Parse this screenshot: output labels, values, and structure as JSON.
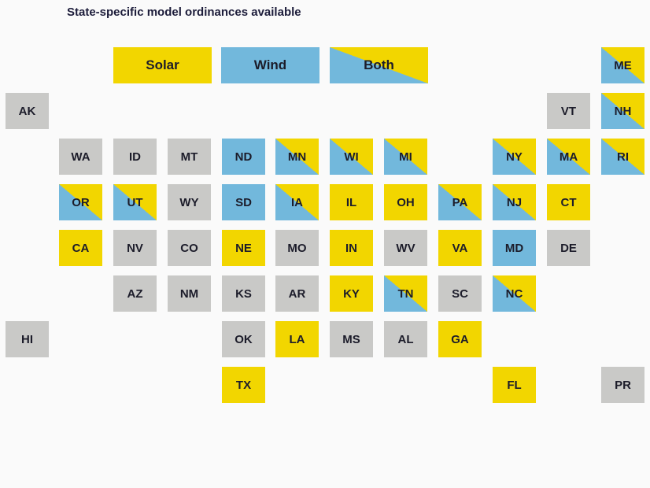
{
  "title": "State-specific model ordinances available",
  "legend": {
    "solar": "Solar",
    "wind": "Wind",
    "both": "Both"
  },
  "colors": {
    "solar": "#f2d600",
    "wind": "#72b8dc",
    "none": "#c9c9c7"
  },
  "states": [
    {
      "code": "ME",
      "status": "both"
    },
    {
      "code": "AK",
      "status": "none"
    },
    {
      "code": "VT",
      "status": "none"
    },
    {
      "code": "NH",
      "status": "both"
    },
    {
      "code": "WA",
      "status": "none"
    },
    {
      "code": "ID",
      "status": "none"
    },
    {
      "code": "MT",
      "status": "none"
    },
    {
      "code": "ND",
      "status": "wind"
    },
    {
      "code": "MN",
      "status": "both"
    },
    {
      "code": "WI",
      "status": "both"
    },
    {
      "code": "MI",
      "status": "both"
    },
    {
      "code": "NY",
      "status": "both"
    },
    {
      "code": "MA",
      "status": "both"
    },
    {
      "code": "RI",
      "status": "both"
    },
    {
      "code": "OR",
      "status": "both"
    },
    {
      "code": "UT",
      "status": "both"
    },
    {
      "code": "WY",
      "status": "none"
    },
    {
      "code": "SD",
      "status": "wind"
    },
    {
      "code": "IA",
      "status": "both"
    },
    {
      "code": "IL",
      "status": "solar"
    },
    {
      "code": "OH",
      "status": "solar"
    },
    {
      "code": "PA",
      "status": "both"
    },
    {
      "code": "NJ",
      "status": "both"
    },
    {
      "code": "CT",
      "status": "solar"
    },
    {
      "code": "CA",
      "status": "solar"
    },
    {
      "code": "NV",
      "status": "none"
    },
    {
      "code": "CO",
      "status": "none"
    },
    {
      "code": "NE",
      "status": "solar"
    },
    {
      "code": "MO",
      "status": "none"
    },
    {
      "code": "IN",
      "status": "solar"
    },
    {
      "code": "WV",
      "status": "none"
    },
    {
      "code": "VA",
      "status": "solar"
    },
    {
      "code": "MD",
      "status": "wind"
    },
    {
      "code": "DE",
      "status": "none"
    },
    {
      "code": "AZ",
      "status": "none"
    },
    {
      "code": "NM",
      "status": "none"
    },
    {
      "code": "KS",
      "status": "none"
    },
    {
      "code": "AR",
      "status": "none"
    },
    {
      "code": "KY",
      "status": "solar"
    },
    {
      "code": "TN",
      "status": "both"
    },
    {
      "code": "SC",
      "status": "none"
    },
    {
      "code": "NC",
      "status": "both"
    },
    {
      "code": "HI",
      "status": "none"
    },
    {
      "code": "OK",
      "status": "none"
    },
    {
      "code": "LA",
      "status": "solar"
    },
    {
      "code": "MS",
      "status": "none"
    },
    {
      "code": "AL",
      "status": "none"
    },
    {
      "code": "GA",
      "status": "solar"
    },
    {
      "code": "TX",
      "status": "solar"
    },
    {
      "code": "FL",
      "status": "solar"
    },
    {
      "code": "PR",
      "status": "none"
    }
  ]
}
